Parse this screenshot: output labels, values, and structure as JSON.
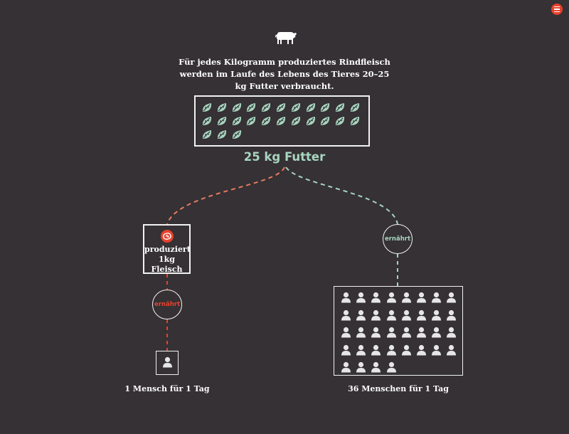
{
  "intro_text": "Für jedes Kilogramm produziertes Rindfleisch werden im Laufe des Lebens des Tieres 20–25 kg Futter verbraucht.",
  "feed": {
    "label": "25 kg Futter",
    "count": 25
  },
  "meat": {
    "label_line1": "produziert",
    "label_line2": "1kg Fleisch"
  },
  "feeds_label": "ernährt",
  "meat_path": {
    "people_count": 1,
    "caption": "1 Mensch für 1 Tag"
  },
  "feed_path": {
    "people_count": 36,
    "caption": "36 Menschen für 1 Tag"
  },
  "colors": {
    "background": "#353134",
    "accent_red": "#e8412d",
    "accent_green": "#a8d5c0",
    "line_light": "#f2f2f2"
  },
  "icons": {
    "top": "cow-icon",
    "feed": "leaf-icon",
    "meat": "steak-icon",
    "person": "person-icon",
    "menu": "menu-icon"
  }
}
